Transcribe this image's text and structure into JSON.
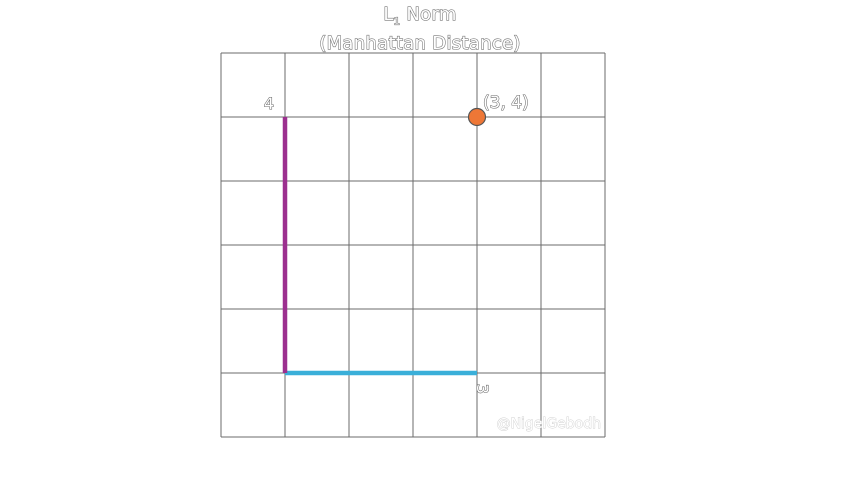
{
  "title": {
    "main": "L",
    "subscript": "1",
    "suffix": " Norm",
    "subtitle": "(Manhattan Distance)"
  },
  "grid": {
    "columns": 6,
    "rows": 6,
    "origin_col": 1,
    "origin_row_from_bottom": 1
  },
  "point": {
    "x": 3,
    "y": 4,
    "label": "(3, 4)",
    "color": "#ee7736"
  },
  "segments": {
    "horizontal": {
      "length_label": "3",
      "color": "#3aafd9"
    },
    "vertical": {
      "length_label": "4",
      "color": "#9c2f8f"
    }
  },
  "watermark": "@NigelGebodh"
}
